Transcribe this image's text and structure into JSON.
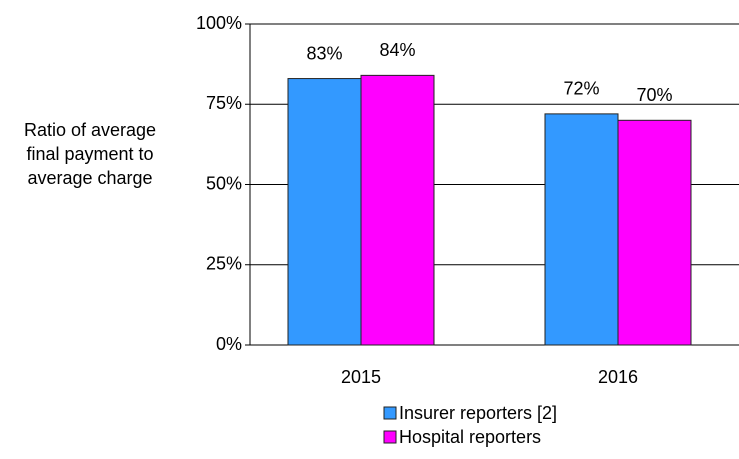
{
  "chart_data": {
    "type": "bar",
    "y_label": "Ratio of average final payment to average charge",
    "categories": [
      "2015",
      "2016"
    ],
    "series": [
      {
        "name": "Insurer reporters [2]",
        "color": "#3399ff",
        "values": [
          83,
          72
        ],
        "value_labels": [
          "83%",
          "72%"
        ]
      },
      {
        "name": "Hospital reporters",
        "color": "#ff00ff",
        "values": [
          84,
          70
        ],
        "value_labels": [
          "84%",
          "70%"
        ]
      }
    ],
    "ylim": [
      0,
      100
    ],
    "yticks": [
      {
        "value": 0,
        "label": "0%"
      },
      {
        "value": 25,
        "label": "25%"
      },
      {
        "value": 50,
        "label": "50%"
      },
      {
        "value": 75,
        "label": "75%"
      },
      {
        "value": 100,
        "label": "100%"
      }
    ],
    "grid": true,
    "legend": "bottom"
  }
}
